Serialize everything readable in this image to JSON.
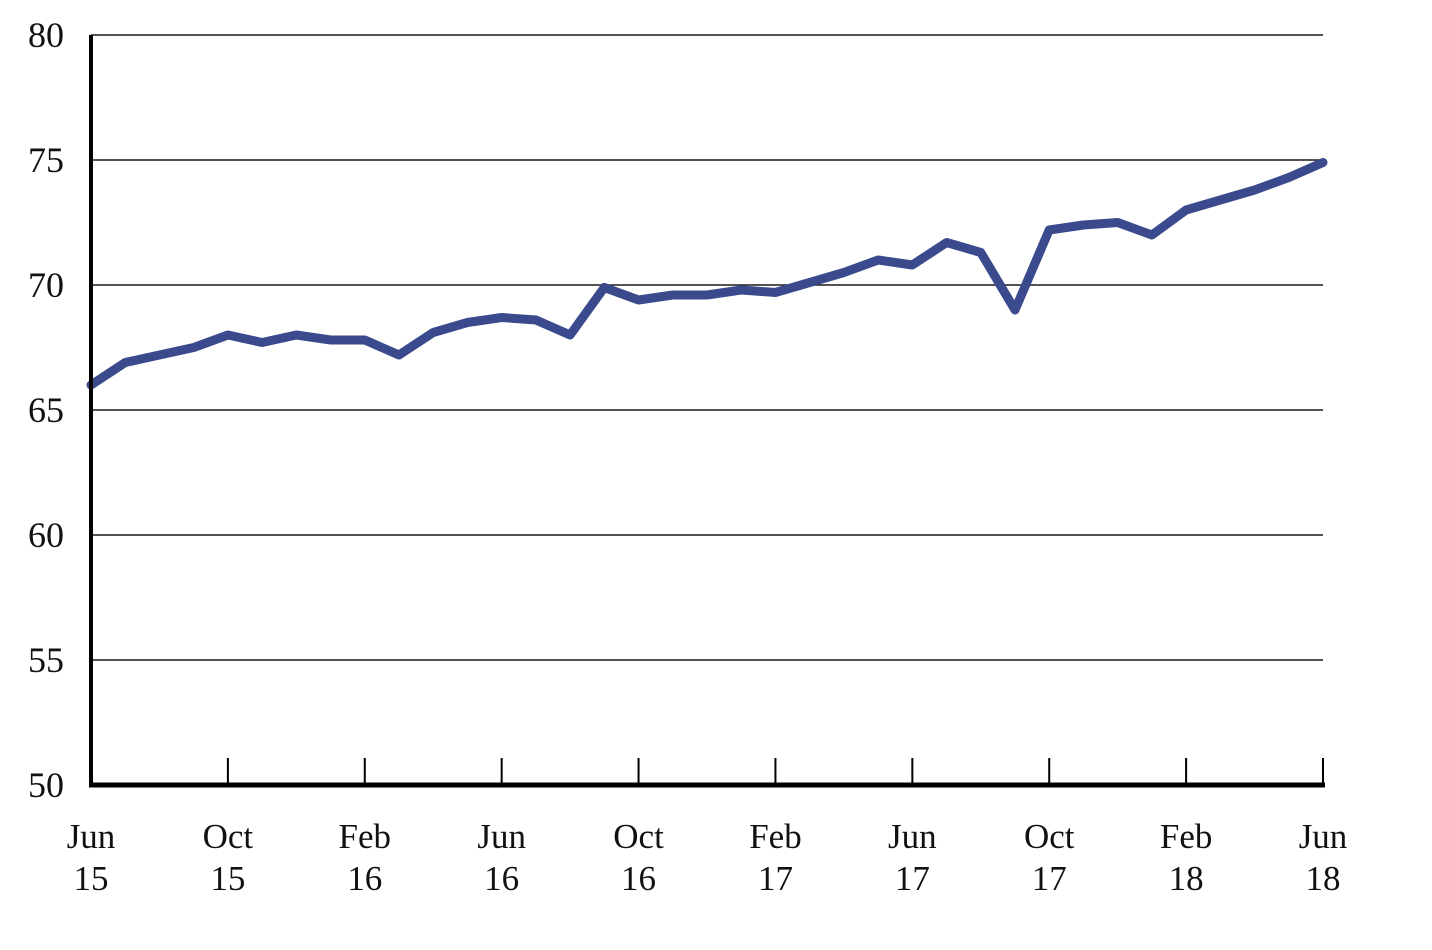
{
  "chart_data": {
    "type": "line",
    "title": "",
    "xlabel": "",
    "ylabel": "",
    "ylim": [
      50,
      80
    ],
    "grid": true,
    "legend_position": "none",
    "x": [
      "Jun 15",
      "Jul 15",
      "Aug 15",
      "Sep 15",
      "Oct 15",
      "Nov 15",
      "Dec 15",
      "Jan 16",
      "Feb 16",
      "Mar 16",
      "Apr 16",
      "May 16",
      "Jun 16",
      "Jul 16",
      "Aug 16",
      "Sep 16",
      "Oct 16",
      "Nov 16",
      "Dec 16",
      "Jan 17",
      "Feb 17",
      "Mar 17",
      "Apr 17",
      "May 17",
      "Jun 17",
      "Jul 17",
      "Aug 17",
      "Sep 17",
      "Oct 17",
      "Nov 17",
      "Dec 17",
      "Jan 18",
      "Feb 18",
      "Mar 18",
      "Apr 18",
      "May 18",
      "Jun 18"
    ],
    "series": [
      {
        "name": "index",
        "values": [
          66.0,
          66.9,
          67.2,
          67.5,
          68.0,
          67.7,
          68.0,
          67.8,
          67.8,
          67.2,
          68.1,
          68.5,
          68.7,
          68.6,
          68.0,
          69.9,
          69.4,
          69.6,
          69.6,
          69.8,
          69.7,
          70.1,
          70.5,
          71.0,
          70.8,
          71.7,
          71.3,
          69.0,
          72.2,
          72.4,
          72.5,
          72.0,
          73.0,
          73.4,
          73.8,
          74.3,
          74.9
        ]
      }
    ],
    "y_ticks": [
      50,
      55,
      60,
      65,
      70,
      75,
      80
    ],
    "x_tick_every_months": 4,
    "x_tick_labels": [
      {
        "month": "Jun",
        "year": "15"
      },
      {
        "month": "Oct",
        "year": "15"
      },
      {
        "month": "Feb",
        "year": "16"
      },
      {
        "month": "Jun",
        "year": "16"
      },
      {
        "month": "Oct",
        "year": "16"
      },
      {
        "month": "Feb",
        "year": "17"
      },
      {
        "month": "Jun",
        "year": "17"
      },
      {
        "month": "Oct",
        "year": "17"
      },
      {
        "month": "Feb",
        "year": "18"
      },
      {
        "month": "Jun",
        "year": "18"
      }
    ],
    "colors": {
      "line": "#3A4A8C",
      "axis": "#000000",
      "gridline": "#1a1a1a",
      "background": "#ffffff",
      "text": "#111111"
    }
  }
}
